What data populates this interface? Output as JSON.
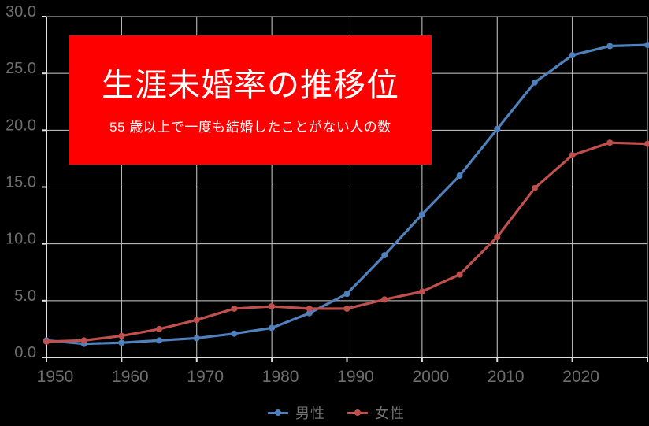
{
  "window": {
    "background": "#000000"
  },
  "title_box": {
    "background": "#ff0000",
    "text_color": "#ffffff"
  },
  "chart_data": {
    "type": "line",
    "title": "生涯未婚率の推移位",
    "subtitle": "55 歳以上で一度も結婚したことがない人の数",
    "x": [
      1950,
      1955,
      1960,
      1965,
      1970,
      1975,
      1980,
      1985,
      1990,
      1995,
      2000,
      2005,
      2010,
      2015,
      2020,
      2025,
      2030
    ],
    "series": [
      {
        "name": "男性",
        "color": "#4f81bd",
        "values": [
          1.5,
          1.2,
          1.3,
          1.5,
          1.7,
          2.1,
          2.6,
          3.9,
          5.6,
          9.0,
          12.6,
          16.0,
          20.1,
          24.2,
          26.6,
          27.4,
          27.5
        ]
      },
      {
        "name": "女性",
        "color": "#c0504d",
        "values": [
          1.4,
          1.5,
          1.9,
          2.5,
          3.3,
          4.3,
          4.5,
          4.3,
          4.3,
          5.1,
          5.8,
          7.3,
          10.6,
          14.9,
          17.8,
          18.9,
          18.8
        ]
      }
    ],
    "xlim": [
      1950,
      2030
    ],
    "ylim": [
      0,
      30
    ],
    "xticks": [
      1950,
      1960,
      1970,
      1980,
      1990,
      2000,
      2010,
      2020
    ],
    "yticks": [
      "0.0",
      "5.0",
      "10.0",
      "15.0",
      "20.0",
      "25.0",
      "30.0"
    ],
    "ytick_step": 5,
    "xgrid_step": 10,
    "grid": true,
    "grid_color": "#cfcfcf",
    "axis_color": "#e0e0e0",
    "tick_label_color": "#6e6e6e",
    "legend_text_color": "#737373",
    "background": "#000000",
    "legend_position": "bottom"
  }
}
